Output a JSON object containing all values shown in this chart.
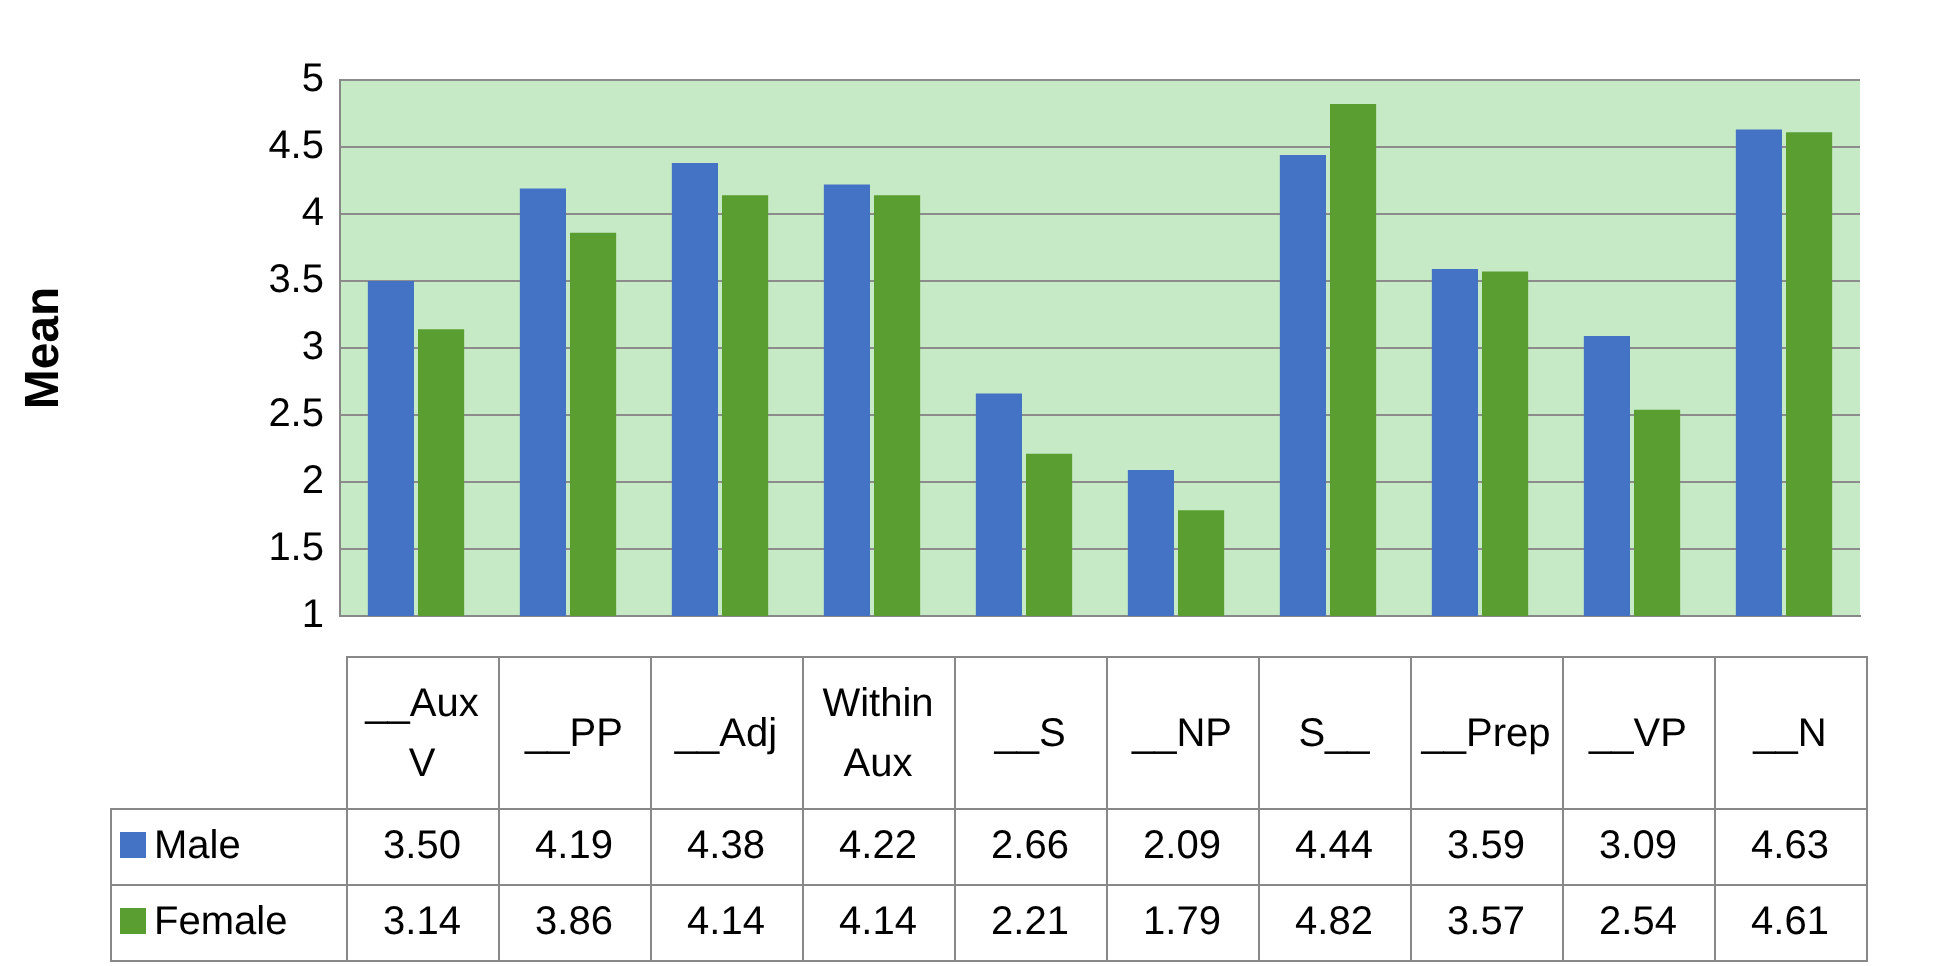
{
  "chart_data": {
    "type": "bar",
    "ylabel": "Mean",
    "categories": [
      "__Aux V",
      "__PP",
      "__Adj",
      "Within Aux",
      "__S",
      "__NP",
      "S__",
      "__Prep",
      "__VP",
      "__N"
    ],
    "series": [
      {
        "name": "Male",
        "color": "#4472c4",
        "values": [
          3.5,
          4.19,
          4.38,
          4.22,
          2.66,
          2.09,
          4.44,
          3.59,
          3.09,
          4.63
        ],
        "value_labels": [
          "3.50",
          "4.19",
          "4.38",
          "4.22",
          "2.66",
          "2.09",
          "4.44",
          "3.59",
          "3.09",
          "4.63"
        ]
      },
      {
        "name": "Female",
        "color": "#5a9e32",
        "values": [
          3.14,
          3.86,
          4.14,
          4.14,
          2.21,
          1.79,
          4.82,
          3.57,
          2.54,
          4.61
        ],
        "value_labels": [
          "3.14",
          "3.86",
          "4.14",
          "4.14",
          "2.21",
          "1.79",
          "4.82",
          "3.57",
          "2.54",
          "4.61"
        ]
      }
    ],
    "ylim": [
      1,
      5
    ],
    "yticks": [
      1,
      1.5,
      2,
      2.5,
      3,
      3.5,
      4,
      4.5,
      5
    ],
    "grid": "y",
    "legend": "bottom left"
  }
}
